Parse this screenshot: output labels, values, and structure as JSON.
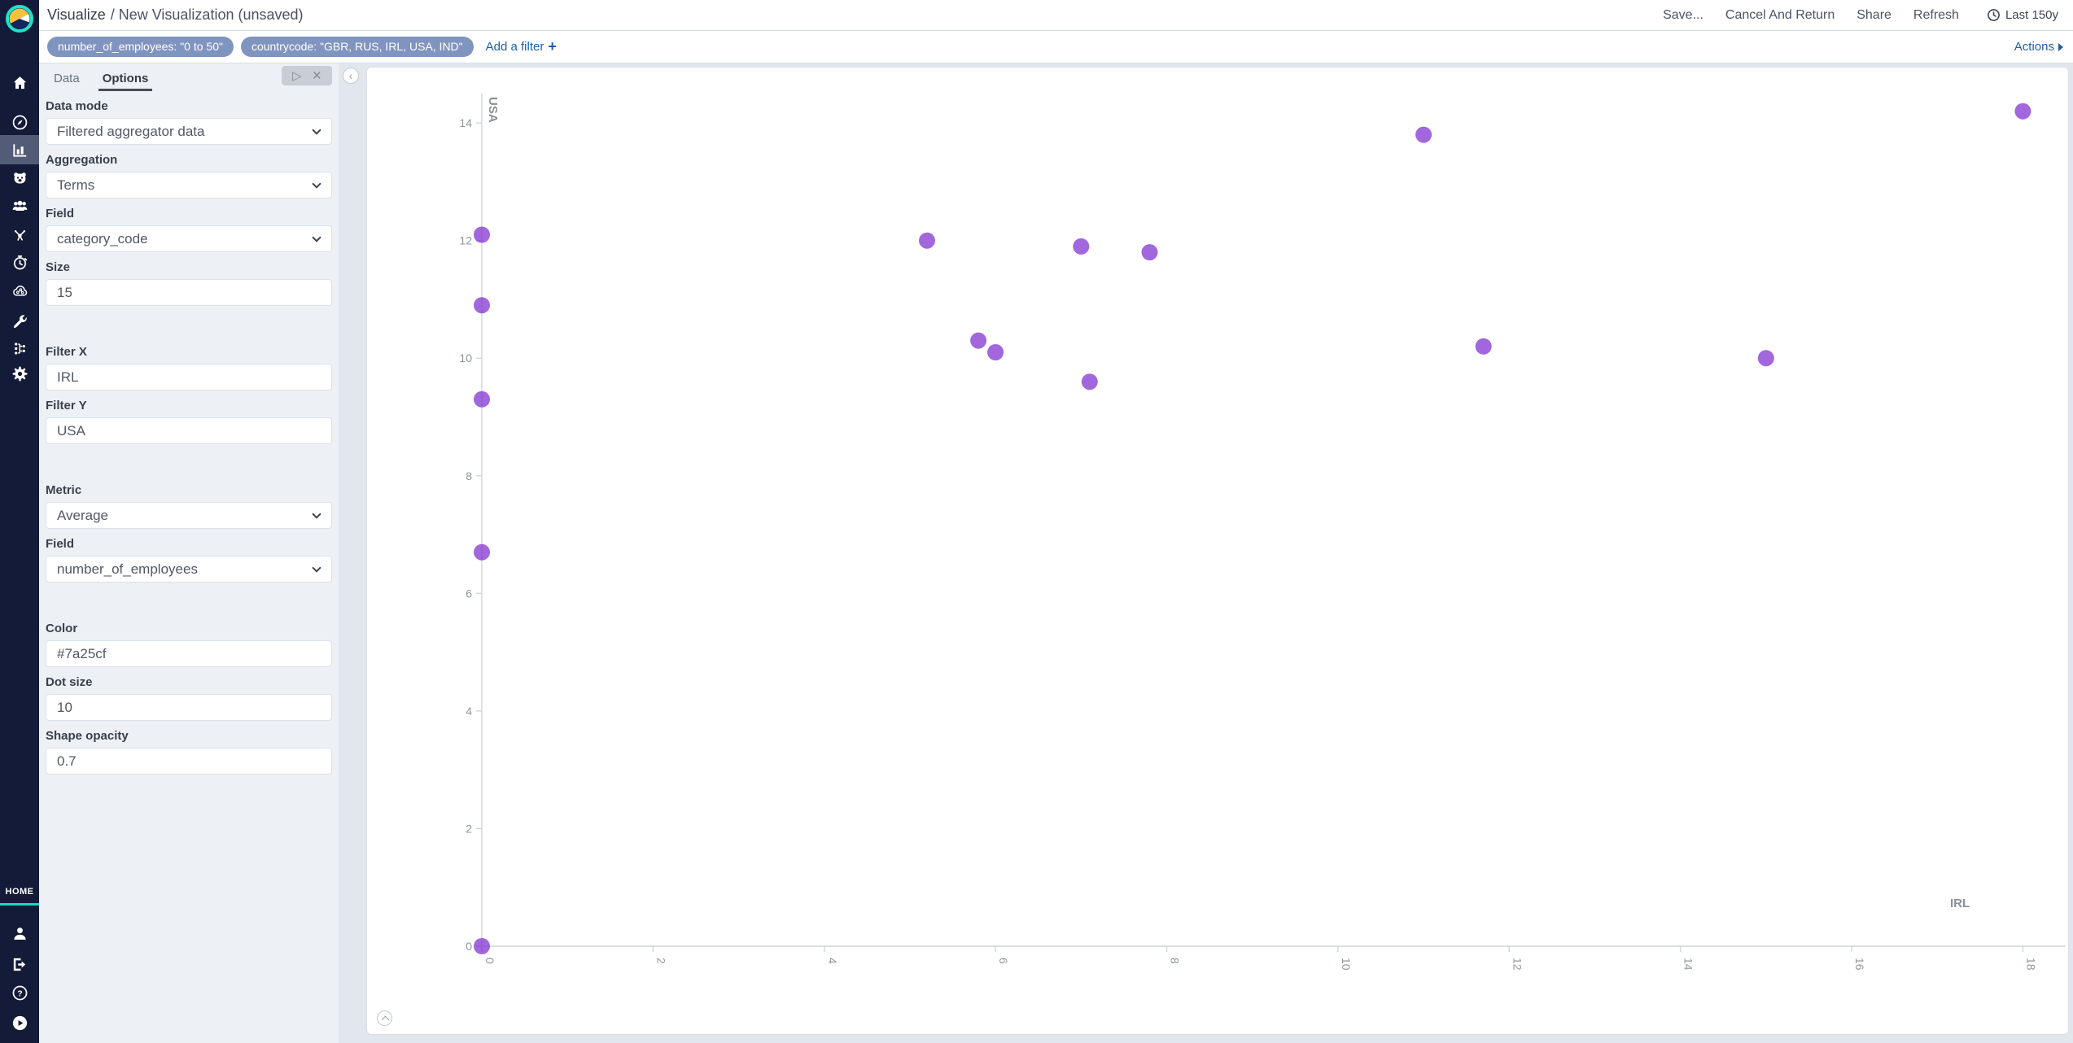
{
  "topbar": {
    "breadcrumb": "Visualize",
    "title": "/ New Visualization (unsaved)",
    "actions": [
      "Save...",
      "Cancel And Return",
      "Share",
      "Refresh"
    ],
    "time_range": "Last 150y"
  },
  "filter_bar": {
    "filters": [
      "number_of_employees: \"0 to 50\"",
      "countrycode: \"GBR, RUS, IRL, USA, IND\""
    ],
    "add_filter_label": "Add a filter",
    "plus": "+",
    "actions_label": "Actions"
  },
  "sidebar": {
    "home_label": "HOME",
    "top_items": [
      {
        "name": "home",
        "icon": "home-icon"
      },
      {
        "name": "discover",
        "icon": "compass-icon"
      },
      {
        "name": "visualize",
        "icon": "bar-chart-icon",
        "selected": true
      },
      {
        "name": "bear-app",
        "icon": "bear-face-icon"
      },
      {
        "name": "user-group",
        "icon": "user-group-icon"
      },
      {
        "name": "node-burst",
        "icon": "node-burst-icon"
      },
      {
        "name": "stopwatch",
        "icon": "stopwatch-icon"
      },
      {
        "name": "cloud-network",
        "icon": "cloud-network-icon"
      },
      {
        "name": "dev-tools",
        "icon": "wrench-icon"
      },
      {
        "name": "pipeline",
        "icon": "pipeline-icon"
      },
      {
        "name": "management",
        "icon": "gear-icon"
      }
    ],
    "bottom_items": [
      {
        "name": "account",
        "icon": "user-icon"
      },
      {
        "name": "logout",
        "icon": "logout-icon"
      },
      {
        "name": "help",
        "icon": "help-icon"
      },
      {
        "name": "play",
        "icon": "play-circle-icon"
      }
    ]
  },
  "panel": {
    "tabs": [
      {
        "label": "Data",
        "active": false
      },
      {
        "label": "Options",
        "active": true
      }
    ],
    "play_glyph": "▷",
    "close_glyph": "×",
    "fields": {
      "data_mode": {
        "label": "Data mode",
        "value": "Filtered aggregator data"
      },
      "aggregation": {
        "label": "Aggregation",
        "value": "Terms"
      },
      "field": {
        "label": "Field",
        "value": "category_code"
      },
      "size": {
        "label": "Size",
        "value": "15"
      },
      "filter_x": {
        "label": "Filter X",
        "value": "IRL"
      },
      "filter_y": {
        "label": "Filter Y",
        "value": "USA"
      },
      "metric": {
        "label": "Metric",
        "value": "Average"
      },
      "metric_field": {
        "label": "Field",
        "value": "number_of_employees"
      },
      "color": {
        "label": "Color",
        "value": "#7a25cf"
      },
      "dot_size": {
        "label": "Dot size",
        "value": "10"
      },
      "shape_opacity": {
        "label": "Shape opacity",
        "value": "0.7"
      }
    }
  },
  "chart_data": {
    "type": "scatter",
    "xlabel": "IRL",
    "ylabel": "USA",
    "xlim": [
      0,
      18.5
    ],
    "ylim": [
      0,
      14.5
    ],
    "x_ticks": [
      0,
      2,
      4,
      6,
      8,
      10,
      12,
      14,
      16,
      18
    ],
    "y_ticks": [
      0,
      2,
      4,
      6,
      8,
      10,
      12,
      14
    ],
    "grid": false,
    "legend": false,
    "dot_color": "#7a25cf",
    "dot_opacity": 0.7,
    "dot_radius_px": 10,
    "points": [
      {
        "x": 0,
        "y": 12.1
      },
      {
        "x": 0,
        "y": 10.9
      },
      {
        "x": 0,
        "y": 9.3
      },
      {
        "x": 0,
        "y": 6.7
      },
      {
        "x": 0,
        "y": 0
      },
      {
        "x": 5.2,
        "y": 12.0
      },
      {
        "x": 5.8,
        "y": 10.3
      },
      {
        "x": 6.0,
        "y": 10.1
      },
      {
        "x": 7.0,
        "y": 11.9
      },
      {
        "x": 7.1,
        "y": 9.6
      },
      {
        "x": 7.8,
        "y": 11.8
      },
      {
        "x": 11.0,
        "y": 13.8
      },
      {
        "x": 11.7,
        "y": 10.2
      },
      {
        "x": 15.0,
        "y": 10.0
      },
      {
        "x": 18.0,
        "y": 14.2
      }
    ]
  }
}
